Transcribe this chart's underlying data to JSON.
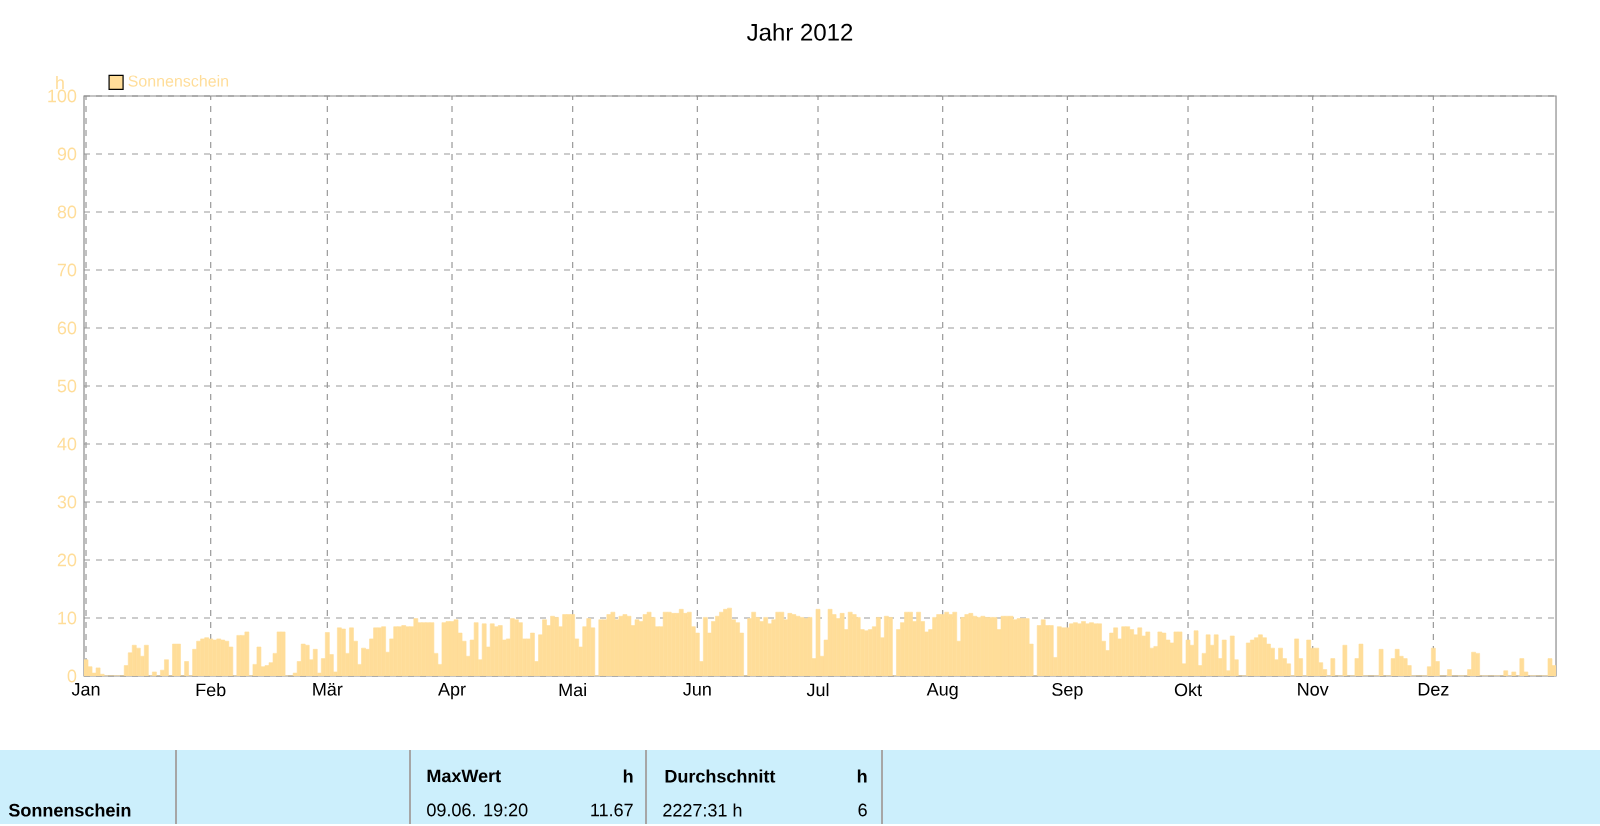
{
  "chart_data": {
    "type": "bar",
    "title": "Jahr 2012",
    "ylabel": "h",
    "x": [
      "2012-01-01",
      "2012-01-02",
      "2012-01-03",
      "2012-01-04",
      "2012-01-05",
      "2012-01-06",
      "2012-01-07",
      "2012-01-08",
      "2012-01-09",
      "2012-01-10",
      "2012-01-11",
      "2012-01-12",
      "2012-01-13",
      "2012-01-14",
      "2012-01-15",
      "2012-01-16",
      "2012-01-17",
      "2012-01-18",
      "2012-01-19",
      "2012-01-20",
      "2012-01-21",
      "2012-01-22",
      "2012-01-23",
      "2012-01-24",
      "2012-01-25",
      "2012-01-26",
      "2012-01-27",
      "2012-01-28",
      "2012-01-29",
      "2012-01-30",
      "2012-01-31",
      "2012-02-01",
      "2012-02-02",
      "2012-02-03",
      "2012-02-04",
      "2012-02-05",
      "2012-02-06",
      "2012-02-07",
      "2012-02-08",
      "2012-02-09",
      "2012-02-10",
      "2012-02-11",
      "2012-02-12",
      "2012-02-13",
      "2012-02-14",
      "2012-02-15",
      "2012-02-16",
      "2012-02-17",
      "2012-02-18",
      "2012-02-19",
      "2012-02-20",
      "2012-02-21",
      "2012-02-22",
      "2012-02-23",
      "2012-02-24",
      "2012-02-25",
      "2012-02-26",
      "2012-02-27",
      "2012-02-28",
      "2012-02-29",
      "2012-03-01",
      "2012-03-02",
      "2012-03-03",
      "2012-03-04",
      "2012-03-05",
      "2012-03-06",
      "2012-03-07",
      "2012-03-08",
      "2012-03-09",
      "2012-03-10",
      "2012-03-11",
      "2012-03-12",
      "2012-03-13",
      "2012-03-14",
      "2012-03-15",
      "2012-03-16",
      "2012-03-17",
      "2012-03-18",
      "2012-03-19",
      "2012-03-20",
      "2012-03-21",
      "2012-03-22",
      "2012-03-23",
      "2012-03-24",
      "2012-03-25",
      "2012-03-26",
      "2012-03-27",
      "2012-03-28",
      "2012-03-29",
      "2012-03-30",
      "2012-03-31",
      "2012-04-01",
      "2012-04-02",
      "2012-04-03",
      "2012-04-04",
      "2012-04-05",
      "2012-04-06",
      "2012-04-07",
      "2012-04-08",
      "2012-04-09",
      "2012-04-10",
      "2012-04-11",
      "2012-04-12",
      "2012-04-13",
      "2012-04-14",
      "2012-04-15",
      "2012-04-16",
      "2012-04-17",
      "2012-04-18",
      "2012-04-19",
      "2012-04-20",
      "2012-04-21",
      "2012-04-22",
      "2012-04-23",
      "2012-04-24",
      "2012-04-25",
      "2012-04-26",
      "2012-04-27",
      "2012-04-28",
      "2012-04-29",
      "2012-04-30",
      "2012-05-01",
      "2012-05-02",
      "2012-05-03",
      "2012-05-04",
      "2012-05-05",
      "2012-05-06",
      "2012-05-07",
      "2012-05-08",
      "2012-05-09",
      "2012-05-10",
      "2012-05-11",
      "2012-05-12",
      "2012-05-13",
      "2012-05-14",
      "2012-05-15",
      "2012-05-16",
      "2012-05-17",
      "2012-05-18",
      "2012-05-19",
      "2012-05-20",
      "2012-05-21",
      "2012-05-22",
      "2012-05-23",
      "2012-05-24",
      "2012-05-25",
      "2012-05-26",
      "2012-05-27",
      "2012-05-28",
      "2012-05-29",
      "2012-05-30",
      "2012-05-31",
      "2012-06-01",
      "2012-06-02",
      "2012-06-03",
      "2012-06-04",
      "2012-06-05",
      "2012-06-06",
      "2012-06-07",
      "2012-06-08",
      "2012-06-09",
      "2012-06-10",
      "2012-06-11",
      "2012-06-12",
      "2012-06-13",
      "2012-06-14",
      "2012-06-15",
      "2012-06-16",
      "2012-06-17",
      "2012-06-18",
      "2012-06-19",
      "2012-06-20",
      "2012-06-21",
      "2012-06-22",
      "2012-06-23",
      "2012-06-24",
      "2012-06-25",
      "2012-06-26",
      "2012-06-27",
      "2012-06-28",
      "2012-06-29",
      "2012-06-30",
      "2012-07-01",
      "2012-07-02",
      "2012-07-03",
      "2012-07-04",
      "2012-07-05",
      "2012-07-06",
      "2012-07-07",
      "2012-07-08",
      "2012-07-09",
      "2012-07-10",
      "2012-07-11",
      "2012-07-12",
      "2012-07-13",
      "2012-07-14",
      "2012-07-15",
      "2012-07-16",
      "2012-07-17",
      "2012-07-18",
      "2012-07-19",
      "2012-07-20",
      "2012-07-21",
      "2012-07-22",
      "2012-07-23",
      "2012-07-24",
      "2012-07-25",
      "2012-07-26",
      "2012-07-27",
      "2012-07-28",
      "2012-07-29",
      "2012-07-30",
      "2012-07-31",
      "2012-08-01",
      "2012-08-02",
      "2012-08-03",
      "2012-08-04",
      "2012-08-05",
      "2012-08-06",
      "2012-08-07",
      "2012-08-08",
      "2012-08-09",
      "2012-08-10",
      "2012-08-11",
      "2012-08-12",
      "2012-08-13",
      "2012-08-14",
      "2012-08-15",
      "2012-08-16",
      "2012-08-17",
      "2012-08-18",
      "2012-08-19",
      "2012-08-20",
      "2012-08-21",
      "2012-08-22",
      "2012-08-23",
      "2012-08-24",
      "2012-08-25",
      "2012-08-26",
      "2012-08-27",
      "2012-08-28",
      "2012-08-29",
      "2012-08-30",
      "2012-08-31",
      "2012-09-01",
      "2012-09-02",
      "2012-09-03",
      "2012-09-04",
      "2012-09-05",
      "2012-09-06",
      "2012-09-07",
      "2012-09-08",
      "2012-09-09",
      "2012-09-10",
      "2012-09-11",
      "2012-09-12",
      "2012-09-13",
      "2012-09-14",
      "2012-09-15",
      "2012-09-16",
      "2012-09-17",
      "2012-09-18",
      "2012-09-19",
      "2012-09-20",
      "2012-09-21",
      "2012-09-22",
      "2012-09-23",
      "2012-09-24",
      "2012-09-25",
      "2012-09-26",
      "2012-09-27",
      "2012-09-28",
      "2012-09-29",
      "2012-09-30",
      "2012-10-01",
      "2012-10-02",
      "2012-10-03",
      "2012-10-04",
      "2012-10-05",
      "2012-10-06",
      "2012-10-07",
      "2012-10-08",
      "2012-10-09",
      "2012-10-10",
      "2012-10-11",
      "2012-10-12",
      "2012-10-13",
      "2012-10-14",
      "2012-10-15",
      "2012-10-16",
      "2012-10-17",
      "2012-10-18",
      "2012-10-19",
      "2012-10-20",
      "2012-10-21",
      "2012-10-22",
      "2012-10-23",
      "2012-10-24",
      "2012-10-25",
      "2012-10-26",
      "2012-10-27",
      "2012-10-28",
      "2012-10-29",
      "2012-10-30",
      "2012-10-31",
      "2012-11-01",
      "2012-11-02",
      "2012-11-03",
      "2012-11-04",
      "2012-11-05",
      "2012-11-06",
      "2012-11-07",
      "2012-11-08",
      "2012-11-09",
      "2012-11-10",
      "2012-11-11",
      "2012-11-12",
      "2012-11-13",
      "2012-11-14",
      "2012-11-15",
      "2012-11-16",
      "2012-11-17",
      "2012-11-18",
      "2012-11-19",
      "2012-11-20",
      "2012-11-21",
      "2012-11-22",
      "2012-11-23",
      "2012-11-24",
      "2012-11-25",
      "2012-11-26",
      "2012-11-27",
      "2012-11-28",
      "2012-11-29",
      "2012-11-30",
      "2012-12-01",
      "2012-12-02",
      "2012-12-03",
      "2012-12-04",
      "2012-12-05",
      "2012-12-06",
      "2012-12-07",
      "2012-12-08",
      "2012-12-09",
      "2012-12-10",
      "2012-12-11",
      "2012-12-12",
      "2012-12-13",
      "2012-12-14",
      "2012-12-15",
      "2012-12-16",
      "2012-12-17",
      "2012-12-18",
      "2012-12-19",
      "2012-12-20",
      "2012-12-21",
      "2012-12-22",
      "2012-12-23",
      "2012-12-24",
      "2012-12-25",
      "2012-12-26",
      "2012-12-27",
      "2012-12-28",
      "2012-12-29",
      "2012-12-30",
      "2012-12-31"
    ],
    "series": [
      {
        "name": "Sonnenschein",
        "color": "#ffdd99",
        "values": [
          2.8,
          1.6,
          0.5,
          1.4,
          0.3,
          0,
          0,
          0,
          0,
          0,
          1.8,
          4.0,
          5.3,
          4.8,
          3.4,
          5.3,
          0,
          0.7,
          0,
          1.0,
          2.8,
          0,
          5.5,
          5.5,
          0,
          2.5,
          0,
          4.6,
          6.0,
          6.4,
          6.6,
          6.4,
          6.2,
          6.4,
          6.2,
          6.0,
          5.0,
          0,
          7.0,
          7.0,
          7.6,
          0,
          2.0,
          5.0,
          1.6,
          1.8,
          2.3,
          3.9,
          7.6,
          7.6,
          0,
          0,
          0.5,
          2.5,
          5.5,
          5.3,
          2.8,
          4.6,
          0.5,
          3.0,
          7.5,
          3.7,
          0.7,
          8.3,
          8.1,
          3.9,
          8.3,
          6.0,
          2.0,
          4.8,
          4.6,
          6.4,
          8.3,
          8.3,
          8.5,
          4.1,
          6.4,
          8.5,
          8.5,
          8.7,
          8.5,
          8.5,
          9.9,
          9.2,
          9.2,
          9.2,
          9.2,
          3.9,
          2.0,
          9.2,
          9.4,
          9.4,
          9.7,
          7.4,
          6.0,
          3.4,
          6.2,
          9.2,
          2.8,
          9.0,
          5.0,
          9.0,
          8.5,
          8.7,
          6.2,
          6.4,
          9.9,
          9.7,
          9.2,
          6.4,
          6.4,
          7.4,
          2.5,
          7.1,
          9.7,
          8.7,
          10.3,
          10.1,
          8.5,
          10.6,
          10.6,
          10.6,
          6.4,
          5.0,
          8.5,
          9.9,
          8.3,
          0,
          9.7,
          9.7,
          10.6,
          11.0,
          9.7,
          10.3,
          10.6,
          10.3,
          8.7,
          9.7,
          9.4,
          10.6,
          11.0,
          10.1,
          8.5,
          8.5,
          11.0,
          11.0,
          10.8,
          10.8,
          11.5,
          10.8,
          11.0,
          8.5,
          7.4,
          2.5,
          10.1,
          7.4,
          9.4,
          10.3,
          11.0,
          11.5,
          11.7,
          9.7,
          9.2,
          7.4,
          0,
          9.9,
          11.0,
          10.1,
          9.4,
          10.1,
          9.0,
          9.7,
          11.0,
          11.0,
          9.7,
          10.8,
          10.6,
          10.3,
          10.1,
          9.9,
          10.1,
          3.0,
          11.5,
          3.4,
          6.2,
          11.5,
          10.6,
          9.9,
          10.8,
          8.0,
          11.0,
          10.6,
          10.1,
          8.0,
          7.8,
          8.0,
          8.5,
          10.1,
          6.6,
          10.3,
          10.1,
          0,
          8.0,
          9.2,
          11.0,
          11.0,
          9.4,
          11.0,
          9.4,
          7.6,
          8.0,
          10.1,
          10.6,
          10.6,
          11.0,
          10.6,
          11.0,
          6.0,
          10.1,
          10.6,
          10.8,
          10.3,
          10.1,
          10.3,
          10.1,
          10.1,
          10.1,
          8.0,
          10.3,
          10.3,
          10.3,
          9.7,
          9.9,
          9.9,
          9.9,
          5.5,
          0,
          8.7,
          9.7,
          8.7,
          8.7,
          3.2,
          8.5,
          8.3,
          8.3,
          9.0,
          9.2,
          9.0,
          9.4,
          9.0,
          9.2,
          9.0,
          9.0,
          6.0,
          4.4,
          7.4,
          8.3,
          6.4,
          8.5,
          8.5,
          8.0,
          7.1,
          8.3,
          6.9,
          7.6,
          4.8,
          5.1,
          7.6,
          7.4,
          6.2,
          5.7,
          7.6,
          7.6,
          2.1,
          6.2,
          5.3,
          7.8,
          1.8,
          3.9,
          7.1,
          5.3,
          7.1,
          3.0,
          6.2,
          0.9,
          6.9,
          2.8,
          0,
          0,
          5.7,
          6.2,
          6.6,
          7.1,
          6.6,
          5.5,
          4.8,
          2.8,
          4.8,
          3.0,
          2.1,
          0,
          6.4,
          3.0,
          0,
          6.2,
          4.8,
          4.8,
          2.3,
          1.1,
          0,
          3.0,
          0,
          0,
          5.3,
          0,
          0,
          3.0,
          5.5,
          0,
          0,
          0,
          0,
          4.6,
          0,
          0,
          3.0,
          4.6,
          3.4,
          3.0,
          1.8,
          0,
          0,
          0,
          0,
          1.6,
          4.8,
          2.5,
          0,
          0,
          1.1,
          0,
          0,
          0,
          0,
          1.1,
          4.1,
          3.9,
          0,
          0,
          0,
          0,
          0,
          0,
          0.9,
          0,
          0.7,
          0,
          3.0,
          0.7,
          0,
          0,
          0,
          0,
          0,
          3.0,
          1.8
        ]
      }
    ],
    "xlim": [
      "2011-12-31T12:00",
      "2012-12-31T12:00"
    ],
    "xticks": [
      {
        "value": "2012-01-01",
        "label": "Jan"
      },
      {
        "value": "2012-02-01",
        "label": "Feb"
      },
      {
        "value": "2012-03-01",
        "label": "Mär"
      },
      {
        "value": "2012-04-01",
        "label": "Apr"
      },
      {
        "value": "2012-05-01",
        "label": "Mai"
      },
      {
        "value": "2012-06-01",
        "label": "Jun"
      },
      {
        "value": "2012-07-01",
        "label": "Jul"
      },
      {
        "value": "2012-08-01",
        "label": "Aug"
      },
      {
        "value": "2012-09-01",
        "label": "Sep"
      },
      {
        "value": "2012-10-01",
        "label": "Okt"
      },
      {
        "value": "2012-11-01",
        "label": "Nov"
      },
      {
        "value": "2012-12-01",
        "label": "Dez"
      }
    ],
    "ylim": [
      0,
      100
    ],
    "yticks": [
      0,
      10,
      20,
      30,
      40,
      50,
      60,
      70,
      80,
      90,
      100
    ],
    "grid": true,
    "legend": "top left",
    "annotations": [
      "MaxWert",
      "h",
      "Durchschnitt",
      "h",
      "Sonnenschein",
      "09.06. 19:20",
      "11.67",
      "2227:31 h",
      "6"
    ]
  }
}
